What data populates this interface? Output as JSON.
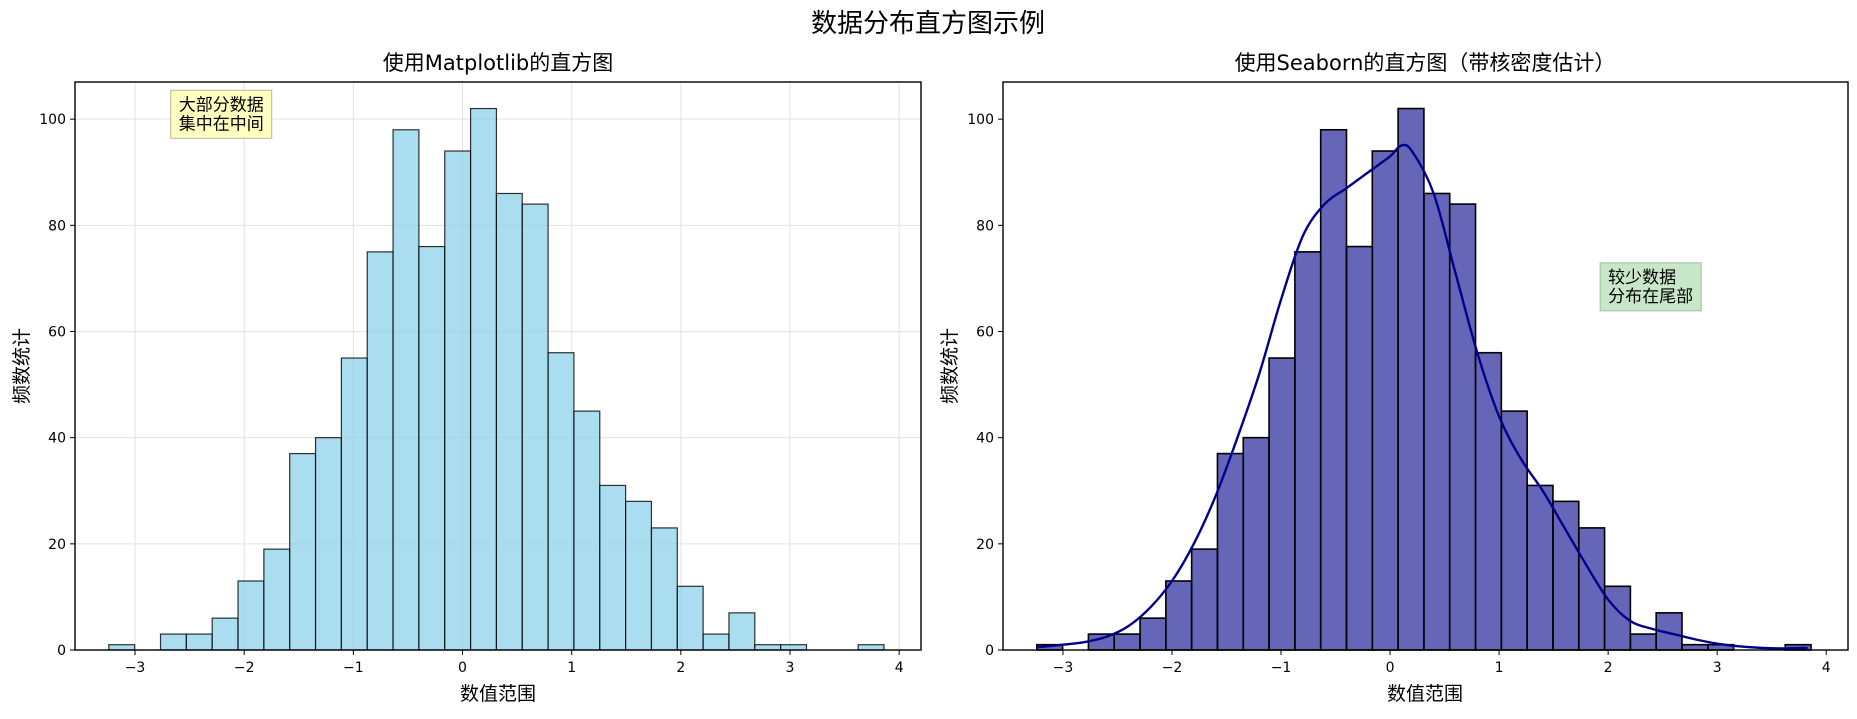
{
  "figure": {
    "suptitle": "数据分布直方图示例"
  },
  "chart_data": [
    {
      "type": "bar",
      "title": "使用Matplotlib的直方图",
      "xlabel": "数值范围",
      "ylabel": "频数统计",
      "xlim": [
        -3.55,
        4.2
      ],
      "ylim": [
        0,
        107
      ],
      "xticks": [
        -3,
        -2,
        -1,
        0,
        1,
        2,
        3,
        4
      ],
      "xtick_labels": [
        "−3",
        "−2",
        "−1",
        "0",
        "1",
        "2",
        "3",
        "4"
      ],
      "yticks": [
        0,
        20,
        40,
        60,
        80,
        100
      ],
      "grid": true,
      "bin_start": -3.24,
      "bin_width": 0.2367,
      "values": [
        1,
        0,
        3,
        3,
        6,
        13,
        19,
        37,
        40,
        55,
        75,
        98,
        76,
        94,
        102,
        86,
        84,
        56,
        45,
        31,
        28,
        23,
        12,
        3,
        7,
        1,
        1,
        0,
        0,
        1
      ],
      "bar_color": "#87CEEB",
      "bar_opacity": 0.7,
      "edge_color": "#000000",
      "annotation": {
        "lines": [
          "大部分数据",
          "集中在中间"
        ],
        "x": -2.6,
        "y": 104.5,
        "box_color": "#FFFFC0"
      }
    },
    {
      "type": "bar",
      "title": "使用Seaborn的直方图（带核密度估计）",
      "xlabel": "数值范围",
      "ylabel": "频数统计",
      "xlim": [
        -3.55,
        4.2
      ],
      "ylim": [
        0,
        107
      ],
      "xticks": [
        -3,
        -2,
        -1,
        0,
        1,
        2,
        3,
        4
      ],
      "xtick_labels": [
        "−3",
        "−2",
        "−1",
        "0",
        "1",
        "2",
        "3",
        "4"
      ],
      "yticks": [
        0,
        20,
        40,
        60,
        80,
        100
      ],
      "grid": false,
      "bin_start": -3.24,
      "bin_width": 0.2367,
      "values": [
        1,
        0,
        3,
        3,
        6,
        13,
        19,
        37,
        40,
        55,
        75,
        98,
        76,
        94,
        102,
        86,
        84,
        56,
        45,
        31,
        28,
        23,
        12,
        3,
        7,
        1,
        1,
        0,
        0,
        1
      ],
      "bar_color": "#00008B",
      "bar_opacity": 0.6,
      "edge_color": "#000000",
      "kde": {
        "color": "#00008B",
        "x": [
          -3.24,
          -3.0,
          -2.8,
          -2.6,
          -2.4,
          -2.2,
          -2.0,
          -1.8,
          -1.6,
          -1.4,
          -1.2,
          -1.0,
          -0.8,
          -0.6,
          -0.4,
          -0.2,
          0.0,
          0.1,
          0.2,
          0.4,
          0.6,
          0.8,
          1.0,
          1.2,
          1.4,
          1.6,
          1.8,
          2.0,
          2.2,
          2.4,
          2.6,
          2.8,
          3.0,
          3.2,
          3.4,
          3.6,
          3.83
        ],
        "y": [
          0.5,
          1,
          1.5,
          2.5,
          4.5,
          8,
          13,
          20,
          29,
          40,
          52,
          66,
          78,
          84,
          87,
          90,
          93,
          95,
          94,
          86,
          71,
          56,
          44,
          36,
          30,
          23,
          16,
          9.5,
          5.5,
          4,
          3,
          2,
          1.2,
          0.7,
          0.4,
          0.3,
          0.4
        ]
      },
      "annotation": {
        "lines": [
          "较少数据",
          "分布在尾部"
        ],
        "x": 2.0,
        "y": 72,
        "box_color": "#C8E6C8"
      }
    }
  ]
}
